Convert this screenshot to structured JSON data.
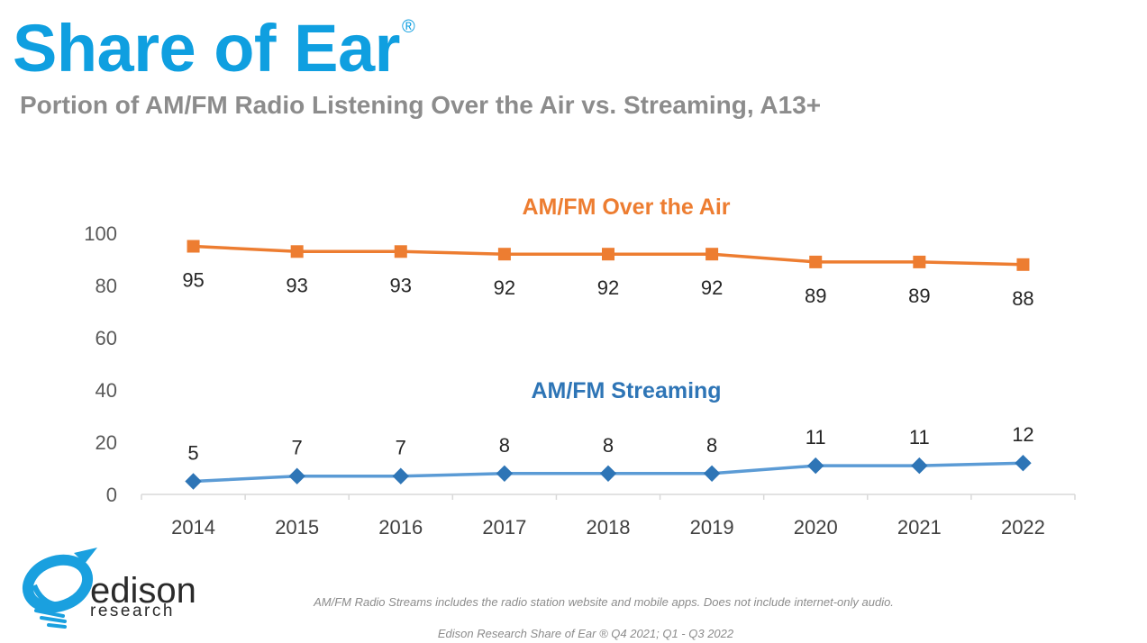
{
  "header": {
    "title": "Share of Ear",
    "registered_mark": "®",
    "subtitle": "Portion of AM/FM Radio Listening Over the Air vs. Streaming, A13+"
  },
  "colors": {
    "title": "#0f9fe0",
    "over_the_air": "#ed7d31",
    "streaming": "#5b9bd5",
    "streaming_label": "#2e75b6",
    "text_gray": "#8c8c8c",
    "axis": "#d9d9d9"
  },
  "chart_data": {
    "type": "line",
    "categories": [
      "2014",
      "2015",
      "2016",
      "2017",
      "2018",
      "2019",
      "2020",
      "2021",
      "2022"
    ],
    "series": [
      {
        "name": "AM/FM Over the Air",
        "marker": "square",
        "values": [
          95,
          93,
          93,
          92,
          92,
          92,
          89,
          89,
          88
        ]
      },
      {
        "name": "AM/FM Streaming",
        "marker": "diamond",
        "values": [
          5,
          7,
          7,
          8,
          8,
          8,
          11,
          11,
          12
        ]
      }
    ],
    "title": "",
    "xlabel": "",
    "ylabel": "",
    "ylim": [
      0,
      100
    ],
    "yticks": [
      0,
      20,
      40,
      60,
      80,
      100
    ],
    "grid": false,
    "data_labels": true
  },
  "footer": {
    "note": "AM/FM Radio Streams includes the radio station website and mobile apps. Does not include internet-only audio.",
    "source": "Edison Research Share of Ear ® Q4 2021; Q1 - Q3 2022"
  },
  "logo": {
    "name": "edison",
    "tagline": "research"
  }
}
